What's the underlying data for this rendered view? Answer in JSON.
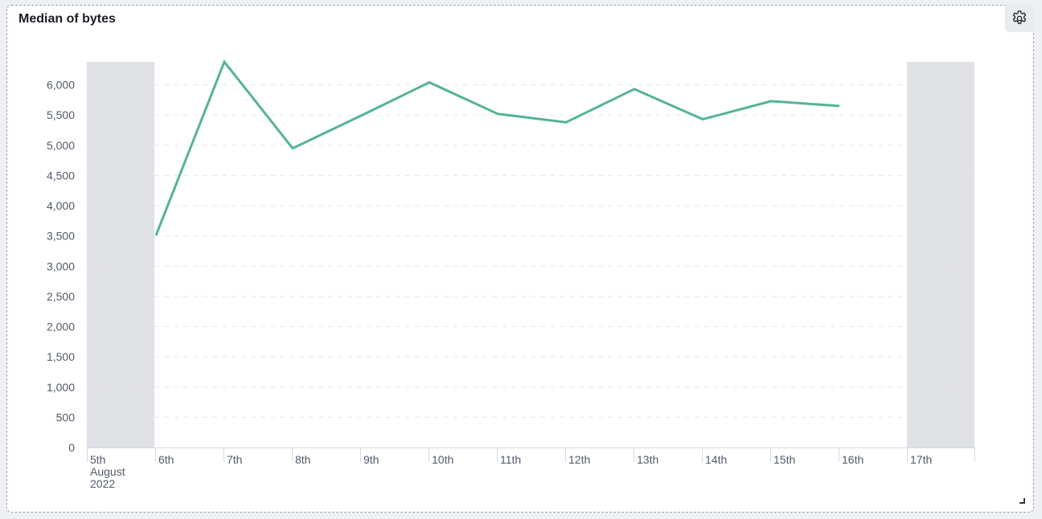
{
  "panel": {
    "title": "Median of bytes",
    "settings_icon": "gear-icon"
  },
  "chart_data": {
    "type": "line",
    "title": "Median of bytes",
    "xlabel": "",
    "ylabel": "",
    "x": [
      "2022-08-06",
      "2022-08-07",
      "2022-08-08",
      "2022-08-09",
      "2022-08-10",
      "2022-08-11",
      "2022-08-12",
      "2022-08-13",
      "2022-08-14",
      "2022-08-15",
      "2022-08-16"
    ],
    "series": [
      {
        "values": [
          3510,
          6380,
          4950,
          5490,
          6040,
          5520,
          5380,
          5930,
          5430,
          5730,
          5650
        ],
        "color": "#54b399"
      }
    ],
    "ylim": [
      0,
      6380
    ],
    "yticks": [
      0,
      500,
      1000,
      1500,
      2000,
      2500,
      3000,
      3500,
      4000,
      4500,
      5000,
      5500,
      6000
    ],
    "ytick_labels": [
      "0",
      "500",
      "1,000",
      "1,500",
      "2,000",
      "2,500",
      "3,000",
      "3,500",
      "4,000",
      "4,500",
      "5,000",
      "5,500",
      "6,000"
    ],
    "xtick_labels": [
      "5th",
      "6th",
      "7th",
      "8th",
      "9th",
      "10th",
      "11th",
      "12th",
      "13th",
      "14th",
      "15th",
      "16th",
      "17th"
    ],
    "x_sublabel": [
      "August",
      "2022"
    ],
    "shaded_out_of_range_days": [
      "5th",
      "17th"
    ],
    "grid": "horizontal dashed",
    "legend": "none"
  }
}
